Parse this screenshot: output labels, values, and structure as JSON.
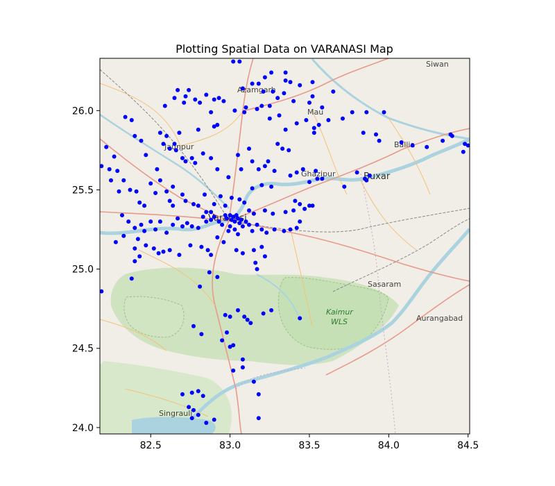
{
  "chart_data": {
    "type": "scatter",
    "title": "Plotting Spatial Data on VARANASI Map",
    "xlabel": "",
    "ylabel": "",
    "xlim": [
      82.18,
      84.51
    ],
    "ylim": [
      23.96,
      26.33
    ],
    "xticks": [
      "82.5",
      "83.0",
      "83.5",
      "84.0",
      "84.5"
    ],
    "yticks": [
      "24.0",
      "24.5",
      "25.0",
      "25.5",
      "26.0"
    ],
    "grid": false,
    "marker_color": "#0000ff",
    "basemap_labels": [
      "Siwan",
      "Azamgarh",
      "Mau",
      "Jaunpur",
      "Ghazipur",
      "Buxar",
      "Ballia",
      "Varanasi",
      "Sasaram",
      "Kaimur",
      "WLS",
      "Aurangabad",
      "Singrauli"
    ],
    "points": [
      [
        83.02,
        26.31
      ],
      [
        83.06,
        26.31
      ],
      [
        83.22,
        26.21
      ],
      [
        83.26,
        26.24
      ],
      [
        83.35,
        26.24
      ],
      [
        83.35,
        26.19
      ],
      [
        83.38,
        26.18
      ],
      [
        83.44,
        26.16
      ],
      [
        83.52,
        26.18
      ],
      [
        83.65,
        26.12
      ],
      [
        82.81,
        26.05
      ],
      [
        82.85,
        26.1
      ],
      [
        82.9,
        26.07
      ],
      [
        82.93,
        26.08
      ],
      [
        82.96,
        26.06
      ],
      [
        83.08,
        26.14
      ],
      [
        83.14,
        26.17
      ],
      [
        83.18,
        26.17
      ],
      [
        83.21,
        26.12
      ],
      [
        83.27,
        26.12
      ],
      [
        83.34,
        26.11
      ],
      [
        83.3,
        26.08
      ],
      [
        83.4,
        26.06
      ],
      [
        83.52,
        26.09
      ],
      [
        83.5,
        26.05
      ],
      [
        83.58,
        26.02
      ],
      [
        82.65,
        26.08
      ],
      [
        82.67,
        26.13
      ],
      [
        82.72,
        26.09
      ],
      [
        82.74,
        26.13
      ],
      [
        82.78,
        26.07
      ],
      [
        82.71,
        26.05
      ],
      [
        82.59,
        26.03
      ],
      [
        82.34,
        25.96
      ],
      [
        82.38,
        25.94
      ],
      [
        82.56,
        25.86
      ],
      [
        82.68,
        25.86
      ],
      [
        82.8,
        25.88
      ],
      [
        82.88,
        25.99
      ],
      [
        82.9,
        25.9
      ],
      [
        82.92,
        25.91
      ],
      [
        83.03,
        26.0
      ],
      [
        83.09,
        25.99
      ],
      [
        83.1,
        26.02
      ],
      [
        83.17,
        26.01
      ],
      [
        83.2,
        26.03
      ],
      [
        83.25,
        26.03
      ],
      [
        83.25,
        25.95
      ],
      [
        83.31,
        25.97
      ],
      [
        83.35,
        25.88
      ],
      [
        83.42,
        25.92
      ],
      [
        83.48,
        25.94
      ],
      [
        83.53,
        25.89
      ],
      [
        83.53,
        25.86
      ],
      [
        83.56,
        25.91
      ],
      [
        83.62,
        25.94
      ],
      [
        83.71,
        25.95
      ],
      [
        83.77,
        25.99
      ],
      [
        83.86,
        25.99
      ],
      [
        83.97,
        25.99
      ],
      [
        83.84,
        25.86
      ],
      [
        83.92,
        25.85
      ],
      [
        83.94,
        25.81
      ],
      [
        84.08,
        25.8
      ],
      [
        84.15,
        25.78
      ],
      [
        84.24,
        25.77
      ],
      [
        84.34,
        25.81
      ],
      [
        84.39,
        25.85
      ],
      [
        84.4,
        25.84
      ],
      [
        84.48,
        25.79
      ],
      [
        84.5,
        25.78
      ],
      [
        84.47,
        25.74
      ],
      [
        82.22,
        25.77
      ],
      [
        82.27,
        25.71
      ],
      [
        82.24,
        25.63
      ],
      [
        82.19,
        25.65
      ],
      [
        82.29,
        25.62
      ],
      [
        82.4,
        25.84
      ],
      [
        82.44,
        25.81
      ],
      [
        82.47,
        25.72
      ],
      [
        82.54,
        25.63
      ],
      [
        82.58,
        25.79
      ],
      [
        82.6,
        25.84
      ],
      [
        82.62,
        25.76
      ],
      [
        82.65,
        25.79
      ],
      [
        82.66,
        25.75
      ],
      [
        82.7,
        25.7
      ],
      [
        82.72,
        25.68
      ],
      [
        82.76,
        25.7
      ],
      [
        82.78,
        25.67
      ],
      [
        82.83,
        25.73
      ],
      [
        82.88,
        25.7
      ],
      [
        82.92,
        25.63
      ],
      [
        82.99,
        25.58
      ],
      [
        83.05,
        25.72
      ],
      [
        83.07,
        25.63
      ],
      [
        83.12,
        25.76
      ],
      [
        83.14,
        25.68
      ],
      [
        83.18,
        25.63
      ],
      [
        83.22,
        25.65
      ],
      [
        83.24,
        25.68
      ],
      [
        83.3,
        25.79
      ],
      [
        83.33,
        25.76
      ],
      [
        83.37,
        25.75
      ],
      [
        83.28,
        25.62
      ],
      [
        83.14,
        25.51
      ],
      [
        83.2,
        25.53
      ],
      [
        83.26,
        25.52
      ],
      [
        83.38,
        25.59
      ],
      [
        83.42,
        25.61
      ],
      [
        83.46,
        25.63
      ],
      [
        83.54,
        25.62
      ],
      [
        83.55,
        25.57
      ],
      [
        83.58,
        25.57
      ],
      [
        83.5,
        25.55
      ],
      [
        83.72,
        25.52
      ],
      [
        83.8,
        25.61
      ],
      [
        83.86,
        25.56
      ],
      [
        83.85,
        25.57
      ],
      [
        83.88,
        25.59
      ],
      [
        82.25,
        25.56
      ],
      [
        82.3,
        25.49
      ],
      [
        82.33,
        25.56
      ],
      [
        82.37,
        25.5
      ],
      [
        82.41,
        25.49
      ],
      [
        82.43,
        25.42
      ],
      [
        82.46,
        25.4
      ],
      [
        82.5,
        25.54
      ],
      [
        82.53,
        25.48
      ],
      [
        82.56,
        25.56
      ],
      [
        82.6,
        25.49
      ],
      [
        82.64,
        25.52
      ],
      [
        82.62,
        25.43
      ],
      [
        82.64,
        25.4
      ],
      [
        82.7,
        25.47
      ],
      [
        82.72,
        25.43
      ],
      [
        82.77,
        25.41
      ],
      [
        82.8,
        25.4
      ],
      [
        82.84,
        25.47
      ],
      [
        82.85,
        25.36
      ],
      [
        82.88,
        25.36
      ],
      [
        82.9,
        25.41
      ],
      [
        82.94,
        25.46
      ],
      [
        82.97,
        25.4
      ],
      [
        83.01,
        25.45
      ],
      [
        83.06,
        25.44
      ],
      [
        83.09,
        25.42
      ],
      [
        83.12,
        25.37
      ],
      [
        83.15,
        25.35
      ],
      [
        83.22,
        25.37
      ],
      [
        83.27,
        25.35
      ],
      [
        83.35,
        25.36
      ],
      [
        83.4,
        25.37
      ],
      [
        83.41,
        25.43
      ],
      [
        83.44,
        25.41
      ],
      [
        83.47,
        25.38
      ],
      [
        83.5,
        25.4
      ],
      [
        83.52,
        25.4
      ],
      [
        83.44,
        25.3
      ],
      [
        82.32,
        25.34
      ],
      [
        82.36,
        25.3
      ],
      [
        82.4,
        25.26
      ],
      [
        82.44,
        25.28
      ],
      [
        82.46,
        25.24
      ],
      [
        82.5,
        25.3
      ],
      [
        82.53,
        25.25
      ],
      [
        82.56,
        25.3
      ],
      [
        82.6,
        25.23
      ],
      [
        82.64,
        25.28
      ],
      [
        82.67,
        25.32
      ],
      [
        82.7,
        25.27
      ],
      [
        82.73,
        25.29
      ],
      [
        82.76,
        25.27
      ],
      [
        82.8,
        25.26
      ],
      [
        82.83,
        25.33
      ],
      [
        82.85,
        25.3
      ],
      [
        82.88,
        25.31
      ],
      [
        82.9,
        25.33
      ],
      [
        82.93,
        25.3
      ],
      [
        82.95,
        25.28
      ],
      [
        82.97,
        25.34
      ],
      [
        82.98,
        25.32
      ],
      [
        83.0,
        25.34
      ],
      [
        83.01,
        25.31
      ],
      [
        83.02,
        25.33
      ],
      [
        83.03,
        25.3
      ],
      [
        83.04,
        25.34
      ],
      [
        83.05,
        25.32
      ],
      [
        83.06,
        25.29
      ],
      [
        83.07,
        25.31
      ],
      [
        83.08,
        25.27
      ],
      [
        83.1,
        25.3
      ],
      [
        83.12,
        25.28
      ],
      [
        83.14,
        25.24
      ],
      [
        83.17,
        25.28
      ],
      [
        83.2,
        25.25
      ],
      [
        83.23,
        25.23
      ],
      [
        83.28,
        25.25
      ],
      [
        83.34,
        25.24
      ],
      [
        83.38,
        25.25
      ],
      [
        83.42,
        25.26
      ],
      [
        83.0,
        25.27
      ],
      [
        82.99,
        25.24
      ],
      [
        83.03,
        25.25
      ],
      [
        83.05,
        25.22
      ],
      [
        82.28,
        25.17
      ],
      [
        82.33,
        25.21
      ],
      [
        82.4,
        25.13
      ],
      [
        82.42,
        25.19
      ],
      [
        82.47,
        25.15
      ],
      [
        82.52,
        25.13
      ],
      [
        82.55,
        25.1
      ],
      [
        82.58,
        25.11
      ],
      [
        82.62,
        25.12
      ],
      [
        82.68,
        25.09
      ],
      [
        82.75,
        25.15
      ],
      [
        82.82,
        25.14
      ],
      [
        82.86,
        25.12
      ],
      [
        82.88,
        25.09
      ],
      [
        82.92,
        25.2
      ],
      [
        82.96,
        25.17
      ],
      [
        83.04,
        25.12
      ],
      [
        83.08,
        25.1
      ],
      [
        83.15,
        25.12
      ],
      [
        83.2,
        25.14
      ],
      [
        83.22,
        25.08
      ],
      [
        83.16,
        25.04
      ],
      [
        83.17,
        25.0
      ],
      [
        82.43,
        25.08
      ],
      [
        82.38,
        24.94
      ],
      [
        82.4,
        25.05
      ],
      [
        82.87,
        24.98
      ],
      [
        82.92,
        24.95
      ],
      [
        82.81,
        24.89
      ],
      [
        82.19,
        24.86
      ],
      [
        82.97,
        24.71
      ],
      [
        83.0,
        24.7
      ],
      [
        83.05,
        24.74
      ],
      [
        83.09,
        24.7
      ],
      [
        83.11,
        24.68
      ],
      [
        83.13,
        24.66
      ],
      [
        83.21,
        24.72
      ],
      [
        83.26,
        24.74
      ],
      [
        83.44,
        24.69
      ],
      [
        82.98,
        24.6
      ],
      [
        82.95,
        24.55
      ],
      [
        83.02,
        24.52
      ],
      [
        82.77,
        24.64
      ],
      [
        82.82,
        24.59
      ],
      [
        83.0,
        24.51
      ],
      [
        83.08,
        24.43
      ],
      [
        83.08,
        24.38
      ],
      [
        83.02,
        24.36
      ],
      [
        83.15,
        24.29
      ],
      [
        82.7,
        24.21
      ],
      [
        82.76,
        24.22
      ],
      [
        82.8,
        24.23
      ],
      [
        82.83,
        24.2
      ],
      [
        82.77,
        24.11
      ],
      [
        82.8,
        24.08
      ],
      [
        82.74,
        24.13
      ],
      [
        82.76,
        24.06
      ],
      [
        82.85,
        24.03
      ],
      [
        82.9,
        24.05
      ],
      [
        83.18,
        24.06
      ],
      [
        83.18,
        24.21
      ]
    ]
  }
}
